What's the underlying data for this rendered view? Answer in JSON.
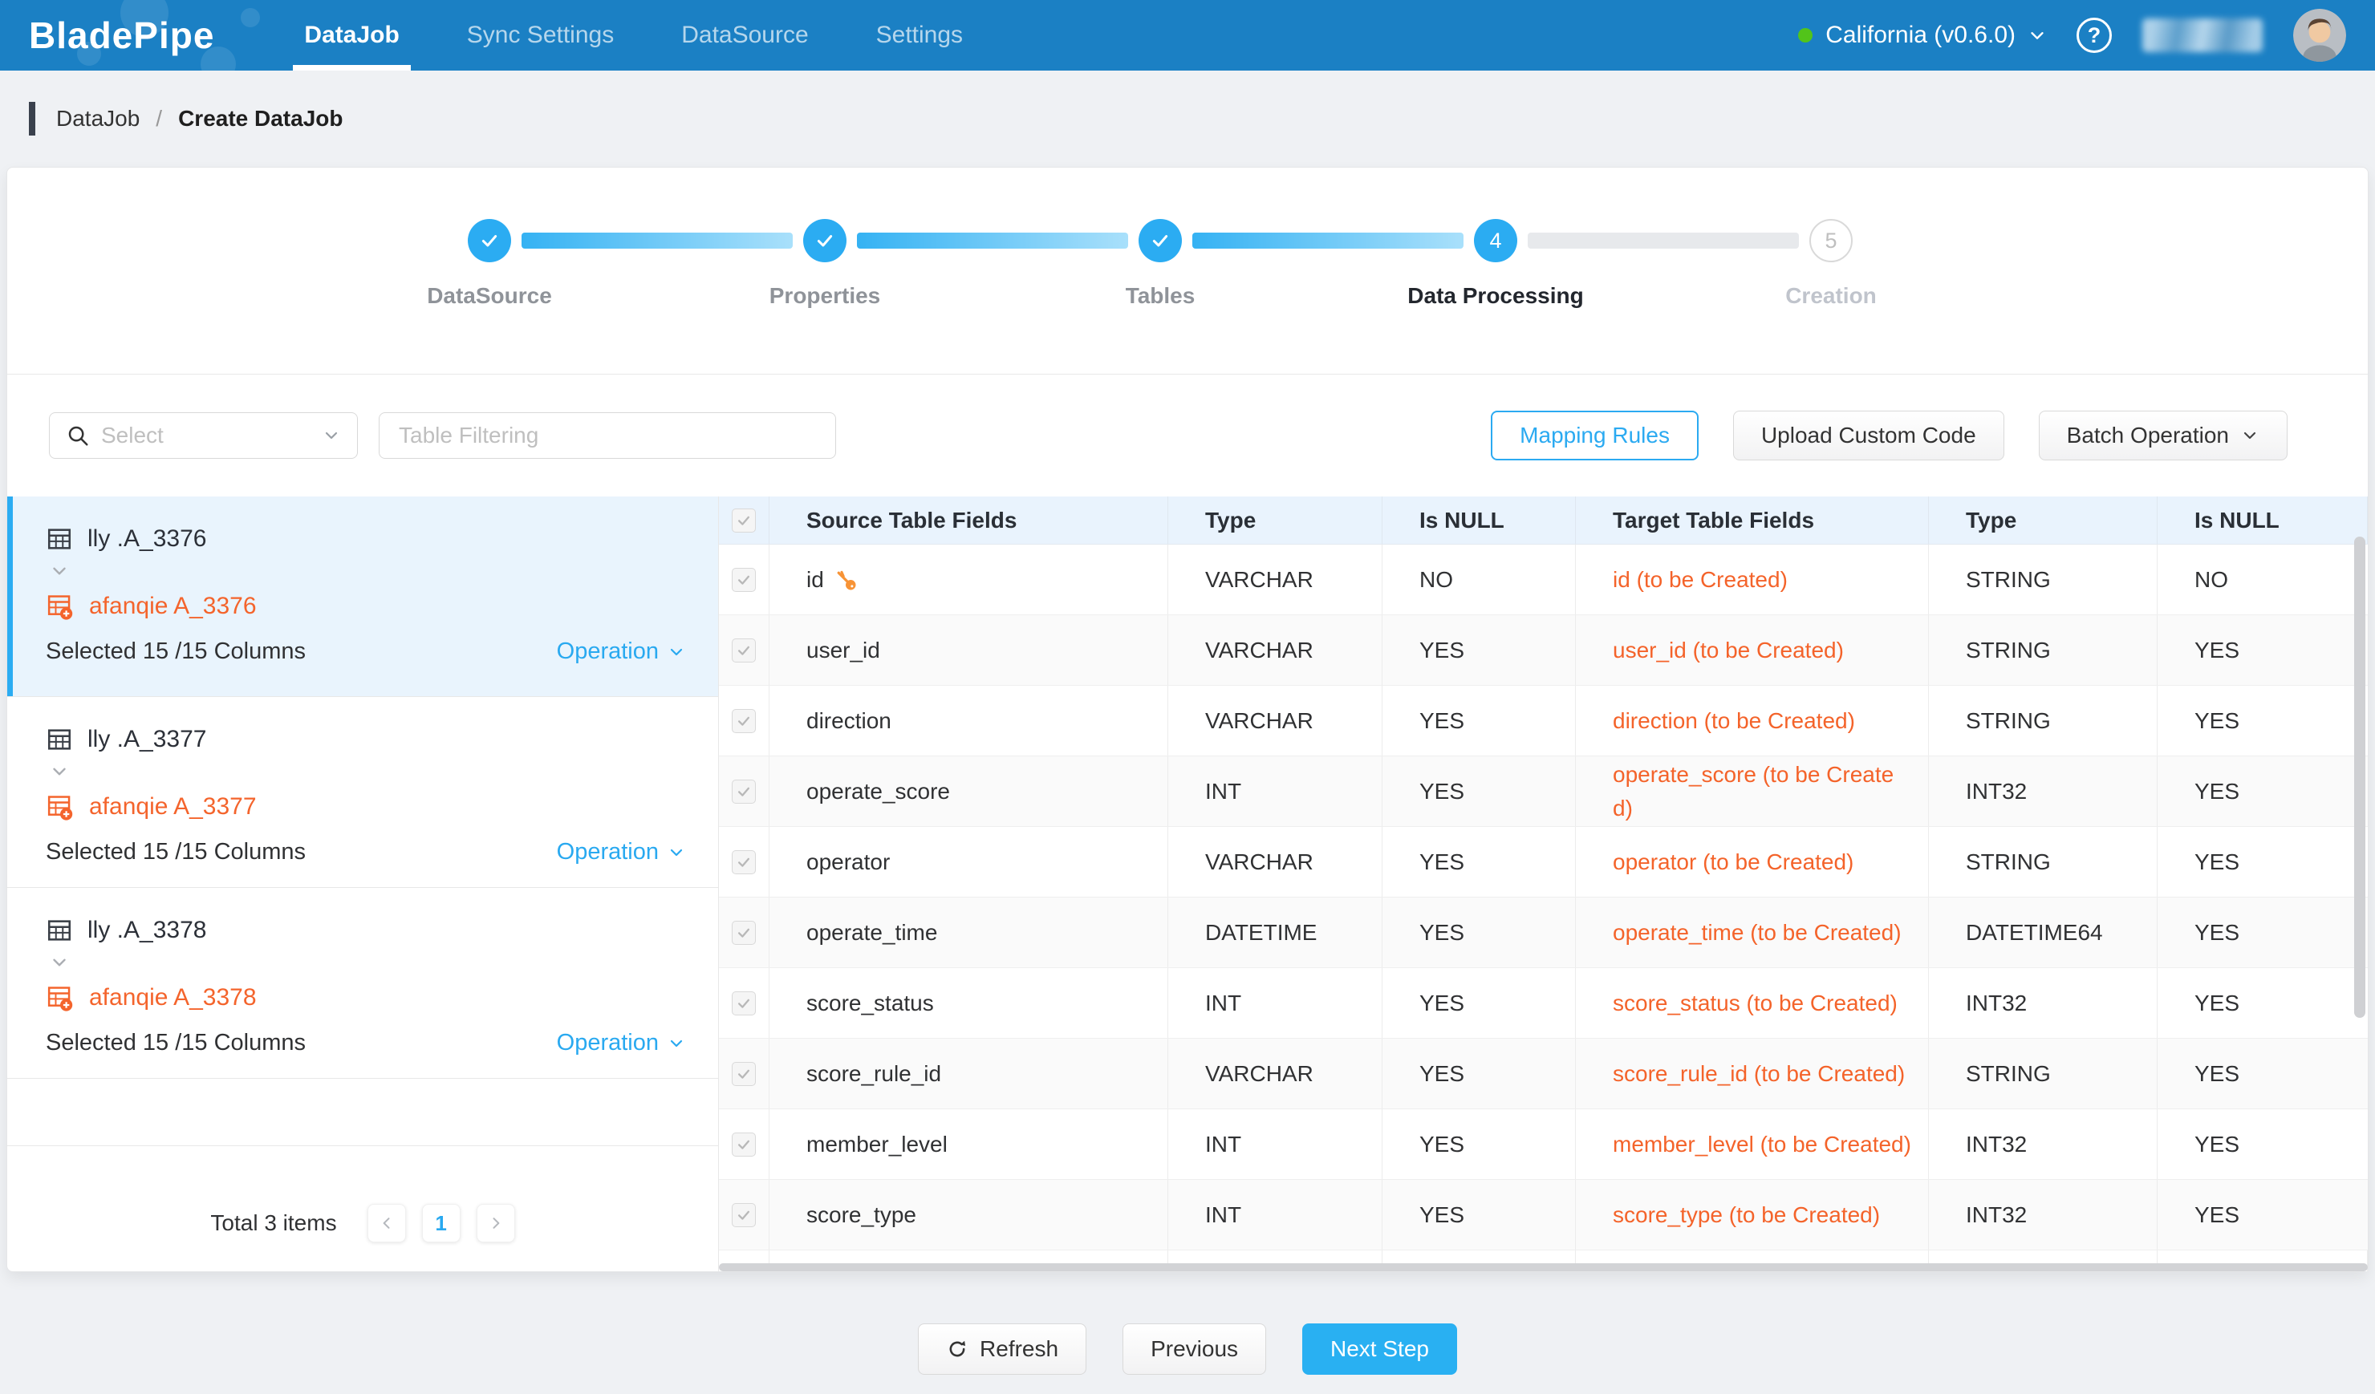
{
  "colors": {
    "nav_blue": "#1b80c4",
    "accent": "#29a9f0",
    "accent_button": "#29b0f2",
    "orange": "#f4642c",
    "status_green": "#52c41a",
    "header_bg": "#e9f3fd",
    "selected_item_bg": "#e9f4fd"
  },
  "nav": {
    "logo": "BladePipe",
    "items": [
      {
        "label": "DataJob",
        "active": true
      },
      {
        "label": "Sync Settings",
        "active": false
      },
      {
        "label": "DataSource",
        "active": false
      },
      {
        "label": "Settings",
        "active": false
      }
    ],
    "env_label": "California (v0.6.0)",
    "help_glyph": "?"
  },
  "breadcrumb": {
    "parent": "DataJob",
    "separator": "/",
    "current": "Create DataJob"
  },
  "stepper": {
    "steps": [
      {
        "label": "DataSource",
        "state": "done"
      },
      {
        "label": "Properties",
        "state": "done"
      },
      {
        "label": "Tables",
        "state": "done"
      },
      {
        "label": "Data Processing",
        "state": "active",
        "number": "4"
      },
      {
        "label": "Creation",
        "state": "pending",
        "number": "5"
      }
    ]
  },
  "toolbar": {
    "select_placeholder": "Select",
    "filter_placeholder": "Table Filtering",
    "mapping_rules": "Mapping Rules",
    "upload_custom_code": "Upload Custom Code",
    "batch_operation": "Batch Operation"
  },
  "left_panel": {
    "items": [
      {
        "source": "lly .A_3376",
        "target": "afanqie A_3376",
        "selected_text": "Selected 15 /15 Columns",
        "operation": "Operation",
        "selected": true
      },
      {
        "source": "lly .A_3377",
        "target": "afanqie A_3377",
        "selected_text": "Selected 15 /15 Columns",
        "operation": "Operation",
        "selected": false
      },
      {
        "source": "lly .A_3378",
        "target": "afanqie A_3378",
        "selected_text": "Selected 15 /15 Columns",
        "operation": "Operation",
        "selected": false
      }
    ],
    "pagination": {
      "total_text": "Total 3 items",
      "page": "1"
    }
  },
  "table": {
    "headers": [
      "",
      "Source Table Fields",
      "Type",
      "Is NULL",
      "Target Table Fields",
      "Type",
      "Is NULL"
    ],
    "rows": [
      {
        "source": "id",
        "key": true,
        "type": "VARCHAR",
        "is_null": "NO",
        "target": "id (to be Created)",
        "target_type": "STRING",
        "target_null": "NO"
      },
      {
        "source": "user_id",
        "key": false,
        "type": "VARCHAR",
        "is_null": "YES",
        "target": "user_id (to be Created)",
        "target_type": "STRING",
        "target_null": "YES"
      },
      {
        "source": "direction",
        "key": false,
        "type": "VARCHAR",
        "is_null": "YES",
        "target": "direction (to be Created)",
        "target_type": "STRING",
        "target_null": "YES"
      },
      {
        "source": "operate_score",
        "key": false,
        "type": "INT",
        "is_null": "YES",
        "target": "operate_score (to be Created)",
        "target_type": "INT32",
        "target_null": "YES"
      },
      {
        "source": "operator",
        "key": false,
        "type": "VARCHAR",
        "is_null": "YES",
        "target": "operator (to be Created)",
        "target_type": "STRING",
        "target_null": "YES"
      },
      {
        "source": "operate_time",
        "key": false,
        "type": "DATETIME",
        "is_null": "YES",
        "target": "operate_time (to be Created)",
        "target_type": "DATETIME64",
        "target_null": "YES"
      },
      {
        "source": "score_status",
        "key": false,
        "type": "INT",
        "is_null": "YES",
        "target": "score_status (to be Created)",
        "target_type": "INT32",
        "target_null": "YES"
      },
      {
        "source": "score_rule_id",
        "key": false,
        "type": "VARCHAR",
        "is_null": "YES",
        "target": "score_rule_id (to be Created)",
        "target_type": "STRING",
        "target_null": "YES"
      },
      {
        "source": "member_level",
        "key": false,
        "type": "INT",
        "is_null": "YES",
        "target": "member_level (to be Created)",
        "target_type": "INT32",
        "target_null": "YES"
      },
      {
        "source": "score_type",
        "key": false,
        "type": "INT",
        "is_null": "YES",
        "target": "score_type (to be Created)",
        "target_type": "INT32",
        "target_null": "YES"
      }
    ]
  },
  "footer": {
    "refresh": "Refresh",
    "previous": "Previous",
    "next": "Next Step"
  }
}
